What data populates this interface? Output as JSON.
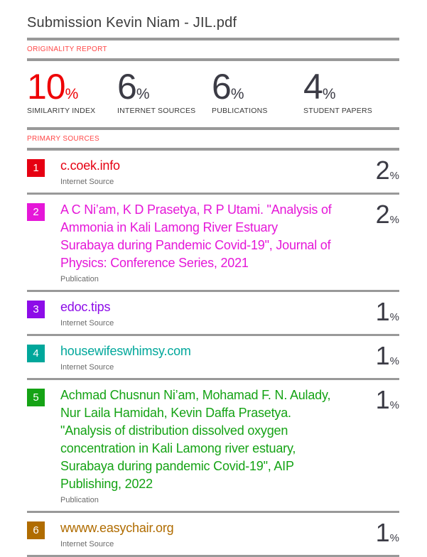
{
  "page": {
    "title": "Submission Kevin Niam - JIL.pdf",
    "originality_section_label": "ORIGINALITY REPORT",
    "primary_sources_label": "PRIMARY SOURCES"
  },
  "colors": {
    "accent_red": "#ee0004",
    "section_label_red": "#ff4747",
    "dark_number": "#3b3b45",
    "rule_gray": "#999999"
  },
  "stats": [
    {
      "value": "10",
      "unit": "%",
      "label": "SIMILARITY INDEX",
      "color": "#ee0004"
    },
    {
      "value": "6",
      "unit": "%",
      "label": "INTERNET SOURCES",
      "color": "#3b3b45"
    },
    {
      "value": "6",
      "unit": "%",
      "label": "PUBLICATIONS",
      "color": "#3b3b45"
    },
    {
      "value": "4",
      "unit": "%",
      "label": "STUDENT PAPERS",
      "color": "#3b3b45"
    }
  ],
  "sources": [
    {
      "index": "1",
      "title": "c.coek.info",
      "type": "Internet Source",
      "percent": "2",
      "unit": "%",
      "color": "#e60012"
    },
    {
      "index": "2",
      "title": "A C Ni’am, K D Prasetya, R P Utami. \"Analysis of Ammonia in Kali Lamong River Estuary Surabaya during Pandemic Covid-19\", Journal of Physics: Conference Series, 2021",
      "type": "Publication",
      "percent": "2",
      "unit": "%",
      "color": "#e517d8"
    },
    {
      "index": "3",
      "title": "edoc.tips",
      "type": "Internet Source",
      "percent": "1",
      "unit": "%",
      "color": "#8d0ce8"
    },
    {
      "index": "4",
      "title": "housewifeswhimsy.com",
      "type": "Internet Source",
      "percent": "1",
      "unit": "%",
      "color": "#00a79b"
    },
    {
      "index": "5",
      "title": "Achmad Chusnun Ni’am, Mohamad F. N. Aulady, Nur Laila Hamidah, Kevin Daffa Prasetya. \"Analysis of distribution dissolved oxygen concentration in Kali Lamong river estuary, Surabaya during pandemic Covid-19\", AIP Publishing, 2022",
      "type": "Publication",
      "percent": "1",
      "unit": "%",
      "color": "#15a315"
    },
    {
      "index": "6",
      "title": "wwww.easychair.org",
      "type": "Internet Source",
      "percent": "1",
      "unit": "%",
      "color": "#b06c00"
    }
  ]
}
